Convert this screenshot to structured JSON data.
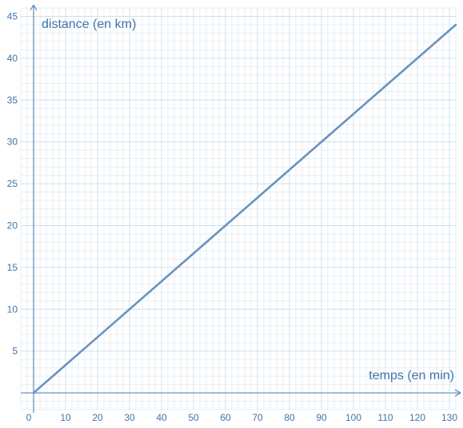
{
  "chart_data": {
    "type": "line",
    "xlabel": "temps (en min)",
    "ylabel": "distance (en km)",
    "xlim": [
      -4,
      132
    ],
    "ylim": [
      -2,
      46
    ],
    "x_ticks": [
      0,
      10,
      20,
      30,
      40,
      50,
      60,
      70,
      80,
      90,
      100,
      110,
      120,
      130
    ],
    "y_ticks": [
      5,
      10,
      15,
      20,
      25,
      30,
      35,
      40,
      45
    ],
    "x_tick_labels": [
      "0",
      "10",
      "20",
      "30",
      "40",
      "50",
      "60",
      "70",
      "80",
      "90",
      "100",
      "110",
      "120",
      "130"
    ],
    "y_tick_labels": [
      "5",
      "10",
      "15",
      "20",
      "25",
      "30",
      "35",
      "40",
      "45"
    ],
    "x_minor_step": 2,
    "y_minor_step": 1,
    "grid": true,
    "series": [
      {
        "x": [
          0,
          132
        ],
        "y": [
          0,
          44
        ]
      }
    ],
    "colors": {
      "line": "#6a93bd",
      "grid_minor": "#e6eff6",
      "grid_major": "#cfe0ec",
      "axis": "#5b8bb8",
      "text": "#3f74a8"
    }
  }
}
